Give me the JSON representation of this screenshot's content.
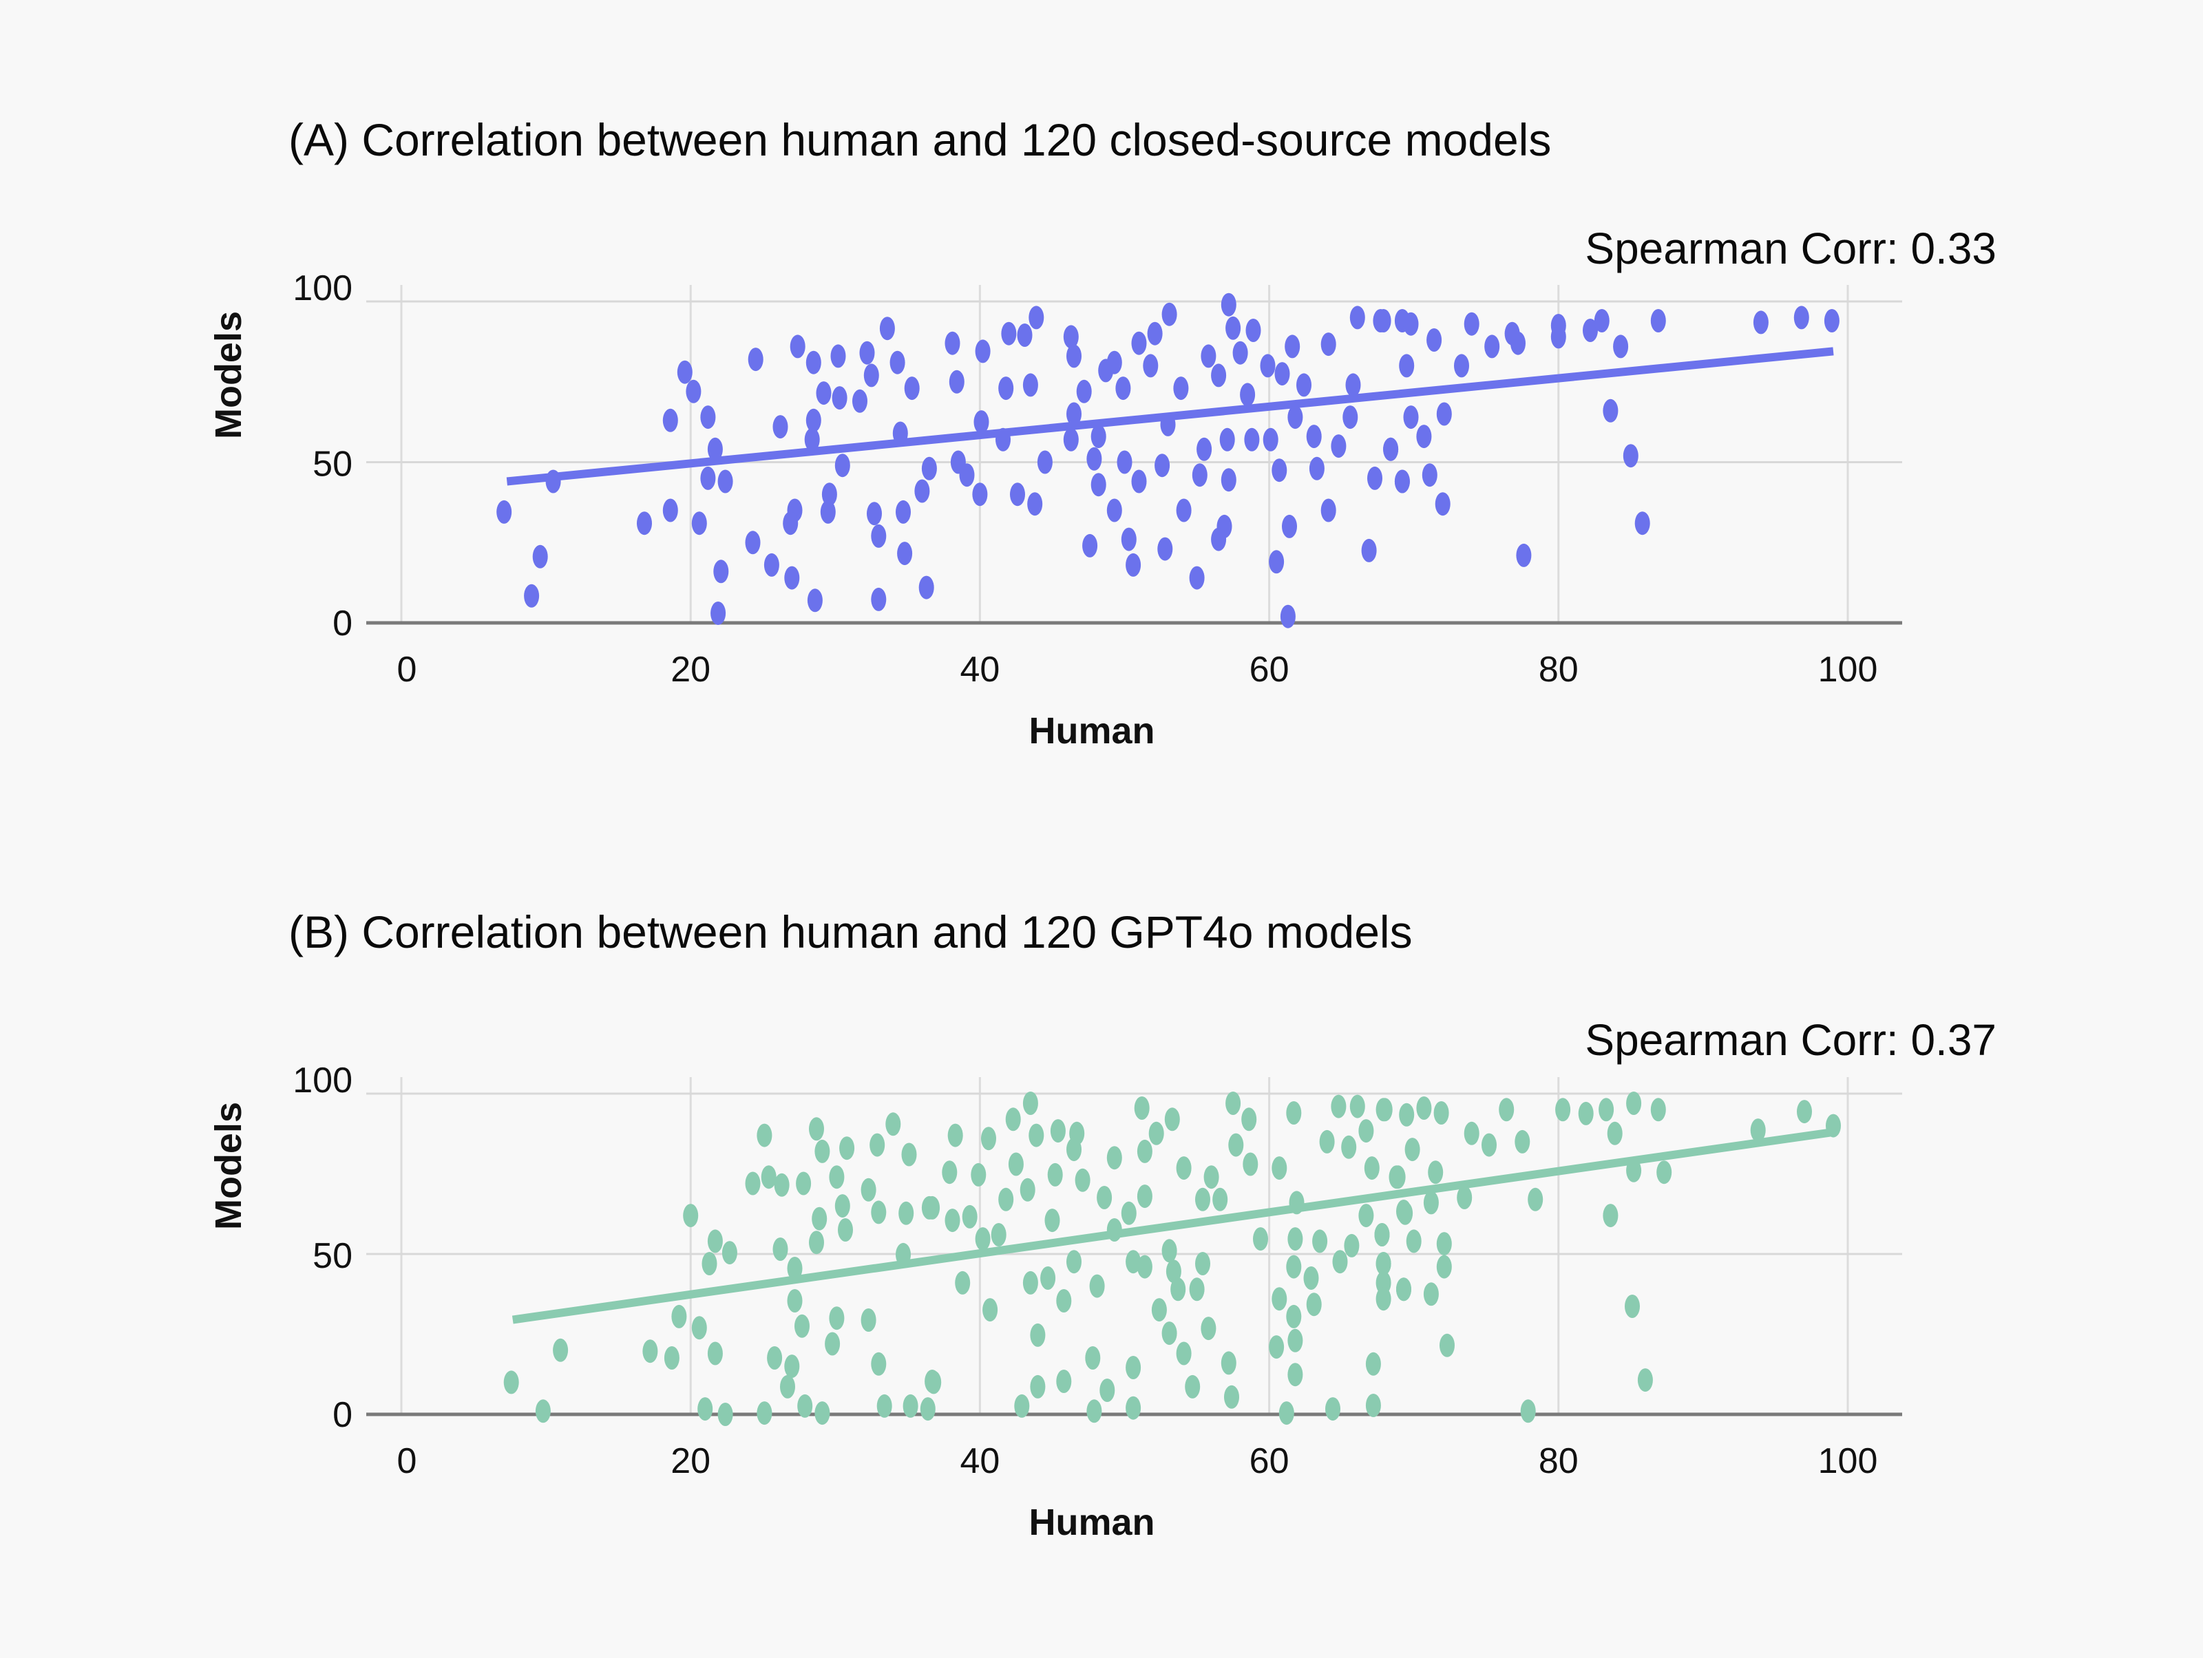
{
  "colors": {
    "background": "#f8f8f8",
    "series_a": "#6b72ec",
    "series_b": "#8acbb0",
    "grid": "#d8d8d8",
    "axis": "#7a7a7a"
  },
  "chart_data": [
    {
      "type": "scatter",
      "title": "(A) Correlation between human and 120 closed-source models",
      "annotation": "Spearman Corr: 0.33",
      "xlabel": "Human",
      "ylabel": "Models",
      "xlim": [
        0,
        100
      ],
      "ylim": [
        0,
        100
      ],
      "xticks": [
        "0",
        "20",
        "40",
        "60",
        "80",
        "100"
      ],
      "yticks": [
        "0",
        "50",
        "100"
      ],
      "grid": true,
      "color": "#6b72ec",
      "trendline": {
        "x": [
          7.3,
          99
        ],
        "y": [
          44,
          84.5
        ]
      },
      "points": [
        [
          7.1,
          34.5
        ],
        [
          9.6,
          20.6
        ],
        [
          9.0,
          8.4
        ],
        [
          10.5,
          44
        ],
        [
          18.6,
          63
        ],
        [
          19.6,
          78
        ],
        [
          20.2,
          72
        ],
        [
          21.2,
          64
        ],
        [
          21.7,
          54
        ],
        [
          21.2,
          45
        ],
        [
          22.4,
          44
        ],
        [
          16.8,
          31
        ],
        [
          18.6,
          35
        ],
        [
          20.6,
          31
        ],
        [
          22.1,
          16
        ],
        [
          21.9,
          3
        ],
        [
          24.5,
          82
        ],
        [
          27.4,
          86
        ],
        [
          33.6,
          91.6
        ],
        [
          28.5,
          81
        ],
        [
          30.2,
          83
        ],
        [
          32.2,
          84
        ],
        [
          32.5,
          77
        ],
        [
          34.3,
          81
        ],
        [
          35.3,
          73
        ],
        [
          29.2,
          71.5
        ],
        [
          30.3,
          70
        ],
        [
          31.7,
          69
        ],
        [
          26.2,
          61
        ],
        [
          28.5,
          63
        ],
        [
          28.4,
          57
        ],
        [
          34.5,
          59
        ],
        [
          30.5,
          49
        ],
        [
          36.5,
          48
        ],
        [
          36.0,
          41
        ],
        [
          29.6,
          40
        ],
        [
          29.5,
          34.5
        ],
        [
          27.2,
          35
        ],
        [
          32.7,
          34
        ],
        [
          34.7,
          34.5
        ],
        [
          33.0,
          27
        ],
        [
          26.9,
          31
        ],
        [
          24.3,
          25
        ],
        [
          25.6,
          18
        ],
        [
          27.0,
          14
        ],
        [
          34.8,
          21.6
        ],
        [
          36.3,
          11
        ],
        [
          28.6,
          7
        ],
        [
          33.0,
          7.3
        ],
        [
          38.1,
          87
        ],
        [
          38.4,
          75
        ],
        [
          40.2,
          84.5
        ],
        [
          43.9,
          95
        ],
        [
          42.0,
          90
        ],
        [
          43.1,
          89.5
        ],
        [
          46.3,
          89
        ],
        [
          43.5,
          74
        ],
        [
          41.8,
          73
        ],
        [
          40.1,
          62.5
        ],
        [
          41.6,
          57
        ],
        [
          44.5,
          50
        ],
        [
          38.5,
          50
        ],
        [
          39.1,
          46
        ],
        [
          40.0,
          40
        ],
        [
          42.6,
          40
        ],
        [
          43.8,
          37
        ],
        [
          46.5,
          83
        ],
        [
          48.7,
          78.5
        ],
        [
          49.3,
          81
        ],
        [
          47.2,
          72
        ],
        [
          46.5,
          65
        ],
        [
          48.2,
          58
        ],
        [
          46.3,
          57
        ],
        [
          47.9,
          51
        ],
        [
          50.0,
          50
        ],
        [
          48.2,
          43
        ],
        [
          49.3,
          35
        ],
        [
          47.6,
          24
        ],
        [
          50.3,
          26
        ],
        [
          50.6,
          18
        ],
        [
          52.8,
          23
        ],
        [
          55.0,
          14
        ],
        [
          51.0,
          44
        ],
        [
          52.6,
          49
        ],
        [
          54.1,
          35
        ],
        [
          56.9,
          30
        ],
        [
          56.5,
          26
        ],
        [
          55.2,
          46
        ],
        [
          55.5,
          54
        ],
        [
          57.1,
          57
        ],
        [
          57.2,
          44.5
        ],
        [
          53.1,
          96
        ],
        [
          52.1,
          90
        ],
        [
          51.0,
          87
        ],
        [
          51.8,
          80
        ],
        [
          53.0,
          61.7
        ],
        [
          49.9,
          73
        ],
        [
          53.9,
          73
        ],
        [
          57.2,
          99
        ],
        [
          57.5,
          91.7
        ],
        [
          55.8,
          83
        ],
        [
          58.0,
          84
        ],
        [
          56.5,
          77
        ],
        [
          58.9,
          91
        ],
        [
          61.6,
          86
        ],
        [
          64.1,
          86.7
        ],
        [
          59.9,
          80
        ],
        [
          60.9,
          77.5
        ],
        [
          62.4,
          74
        ],
        [
          58.5,
          71
        ],
        [
          61.8,
          64
        ],
        [
          63.1,
          58
        ],
        [
          58.8,
          57
        ],
        [
          60.1,
          57
        ],
        [
          60.7,
          47.5
        ],
        [
          63.3,
          48
        ],
        [
          64.8,
          55
        ],
        [
          64.1,
          35
        ],
        [
          61.4,
          30
        ],
        [
          60.5,
          19
        ],
        [
          61.3,
          2
        ],
        [
          66.9,
          22.5
        ],
        [
          66.1,
          95
        ],
        [
          67.7,
          94
        ],
        [
          65.8,
          74
        ],
        [
          65.6,
          64
        ],
        [
          67.3,
          45
        ],
        [
          68.4,
          54
        ],
        [
          69.2,
          44
        ],
        [
          69.2,
          94
        ],
        [
          67.9,
          94
        ],
        [
          69.8,
          93
        ],
        [
          71.4,
          88
        ],
        [
          74.0,
          93
        ],
        [
          75.4,
          86
        ],
        [
          76.8,
          90
        ],
        [
          77.2,
          87
        ],
        [
          73.3,
          80
        ],
        [
          69.5,
          80
        ],
        [
          72.1,
          65
        ],
        [
          69.8,
          64
        ],
        [
          70.7,
          58
        ],
        [
          68.4,
          54
        ],
        [
          69.2,
          44
        ],
        [
          71.1,
          46
        ],
        [
          72.0,
          37
        ],
        [
          77.6,
          21
        ],
        [
          80.0,
          92.5
        ],
        [
          80.0,
          89
        ],
        [
          82.2,
          91
        ],
        [
          83.0,
          94
        ],
        [
          84.3,
          86
        ],
        [
          86.9,
          94
        ],
        [
          83.6,
          66
        ],
        [
          85.0,
          52
        ],
        [
          85.8,
          31
        ],
        [
          94.0,
          93.5
        ],
        [
          96.8,
          95
        ],
        [
          98.9,
          94
        ]
      ]
    },
    {
      "type": "scatter",
      "title": "(B) Correlation between human and 120 GPT4o models",
      "annotation": "Spearman Corr: 0.37",
      "xlabel": "Human",
      "ylabel": "Models",
      "xlim": [
        0,
        100
      ],
      "ylim": [
        0,
        100
      ],
      "xticks": [
        "0",
        "20",
        "40",
        "60",
        "80",
        "100"
      ],
      "yticks": [
        "0",
        "50",
        "100"
      ],
      "grid": true,
      "color": "#8acbb0",
      "trendline": {
        "x": [
          7.7,
          99
        ],
        "y": [
          29.5,
          88
        ]
      },
      "points": [
        [
          7.6,
          10
        ],
        [
          9.8,
          1
        ],
        [
          11.0,
          20
        ],
        [
          17.2,
          19.7
        ],
        [
          18.7,
          17.6
        ],
        [
          19.2,
          30.5
        ],
        [
          20.6,
          27
        ],
        [
          21.7,
          19
        ],
        [
          20.0,
          62
        ],
        [
          21.7,
          54
        ],
        [
          22.7,
          50.4
        ],
        [
          21.3,
          47
        ],
        [
          26.2,
          51.5
        ],
        [
          27.2,
          45.5
        ],
        [
          27.2,
          35.4
        ],
        [
          27.7,
          27.5
        ],
        [
          30.1,
          30
        ],
        [
          32.3,
          29.4
        ],
        [
          29.8,
          22
        ],
        [
          25.8,
          17.6
        ],
        [
          27.0,
          15
        ],
        [
          26.7,
          8.6
        ],
        [
          33.0,
          15.7
        ],
        [
          36.8,
          10
        ],
        [
          21.0,
          1.7
        ],
        [
          22.4,
          0
        ],
        [
          25.1,
          0.4
        ],
        [
          27.9,
          2.6
        ],
        [
          29.1,
          0.4
        ],
        [
          33.4,
          2.6
        ],
        [
          35.2,
          2.6
        ],
        [
          36.4,
          1.7
        ],
        [
          25.1,
          87
        ],
        [
          28.7,
          89
        ],
        [
          34.0,
          90.5
        ],
        [
          29.1,
          82
        ],
        [
          30.8,
          83
        ],
        [
          32.9,
          84
        ],
        [
          35.1,
          81
        ],
        [
          25.4,
          74
        ],
        [
          24.3,
          72
        ],
        [
          26.3,
          71.5
        ],
        [
          27.8,
          72
        ],
        [
          30.1,
          74
        ],
        [
          32.3,
          70
        ],
        [
          30.5,
          65
        ],
        [
          28.9,
          61
        ],
        [
          30.7,
          57.5
        ],
        [
          28.7,
          53.6
        ],
        [
          33.0,
          63
        ],
        [
          34.9,
          62.7
        ],
        [
          36.5,
          64.4
        ],
        [
          34.7,
          49.8
        ],
        [
          38.3,
          87
        ],
        [
          37.9,
          75.5
        ],
        [
          39.9,
          74.7
        ],
        [
          40.6,
          86
        ],
        [
          42.3,
          92
        ],
        [
          43.5,
          97
        ],
        [
          43.9,
          87
        ],
        [
          45.4,
          88.4
        ],
        [
          46.7,
          87.6
        ],
        [
          42.5,
          78
        ],
        [
          45.2,
          74.7
        ],
        [
          46.5,
          82.6
        ],
        [
          49.3,
          80
        ],
        [
          51.4,
          82
        ],
        [
          47.1,
          73
        ],
        [
          43.3,
          70
        ],
        [
          41.8,
          67
        ],
        [
          45.0,
          60.5
        ],
        [
          38.1,
          60.5
        ],
        [
          39.3,
          61.6
        ],
        [
          36.7,
          64.4
        ],
        [
          40.2,
          54.7
        ],
        [
          41.3,
          56
        ],
        [
          51.2,
          95.5
        ],
        [
          53.3,
          92
        ],
        [
          52.2,
          87.6
        ],
        [
          48.6,
          67.6
        ],
        [
          51.4,
          68
        ],
        [
          50.3,
          62.7
        ],
        [
          49.3,
          57.5
        ],
        [
          38.8,
          41
        ],
        [
          43.5,
          41
        ],
        [
          44.7,
          42.5
        ],
        [
          46.5,
          47.6
        ],
        [
          48.1,
          40
        ],
        [
          45.8,
          35.4
        ],
        [
          50.6,
          47.6
        ],
        [
          51.4,
          46
        ],
        [
          53.1,
          51
        ],
        [
          53.4,
          44.6
        ],
        [
          55.4,
          47
        ],
        [
          53.7,
          39
        ],
        [
          55.0,
          39
        ],
        [
          40.7,
          32.6
        ],
        [
          44.0,
          24.7
        ],
        [
          52.4,
          32.6
        ],
        [
          53.1,
          25.3
        ],
        [
          54.1,
          19
        ],
        [
          55.8,
          26.8
        ],
        [
          47.8,
          17.6
        ],
        [
          50.6,
          14.6
        ],
        [
          57.2,
          16
        ],
        [
          57.4,
          5.4
        ],
        [
          54.7,
          8.6
        ],
        [
          48.8,
          7.5
        ],
        [
          45.8,
          10.3
        ],
        [
          44.0,
          8.6
        ],
        [
          42.9,
          2.6
        ],
        [
          47.9,
          1
        ],
        [
          50.6,
          2
        ],
        [
          36.7,
          10.3
        ],
        [
          57.5,
          97
        ],
        [
          58.6,
          92
        ],
        [
          57.7,
          84
        ],
        [
          54.1,
          76.8
        ],
        [
          56.0,
          74
        ],
        [
          58.7,
          78
        ],
        [
          55.4,
          67
        ],
        [
          56.6,
          67
        ],
        [
          61.7,
          94
        ],
        [
          64.8,
          96
        ],
        [
          66.1,
          96
        ],
        [
          67.9,
          95
        ],
        [
          66.7,
          88.4
        ],
        [
          60.7,
          76.8
        ],
        [
          64.0,
          85
        ],
        [
          65.5,
          83.3
        ],
        [
          67.1,
          76.8
        ],
        [
          68.9,
          74
        ],
        [
          61.9,
          66
        ],
        [
          66.7,
          62
        ],
        [
          69.4,
          62.7
        ],
        [
          59.4,
          54.7
        ],
        [
          61.8,
          54.7
        ],
        [
          63.5,
          54
        ],
        [
          65.7,
          52.6
        ],
        [
          67.8,
          56
        ],
        [
          64.9,
          47.6
        ],
        [
          61.7,
          46
        ],
        [
          62.9,
          42.5
        ],
        [
          67.9,
          47
        ],
        [
          67.9,
          41
        ],
        [
          67.9,
          36
        ],
        [
          69.3,
          39
        ],
        [
          60.7,
          36
        ],
        [
          63.1,
          34.3
        ],
        [
          61.7,
          30.5
        ],
        [
          60.5,
          21
        ],
        [
          61.8,
          23
        ],
        [
          61.8,
          12.4
        ],
        [
          67.2,
          15.7
        ],
        [
          61.2,
          0.4
        ],
        [
          64.4,
          1.7
        ],
        [
          67.2,
          2.8
        ],
        [
          68.0,
          95
        ],
        [
          69.5,
          93.4
        ],
        [
          70.7,
          95.5
        ],
        [
          71.9,
          94
        ],
        [
          69.9,
          82.6
        ],
        [
          74.0,
          87.6
        ],
        [
          75.2,
          84
        ],
        [
          76.4,
          95
        ],
        [
          77.5,
          85
        ],
        [
          68.8,
          74
        ],
        [
          71.5,
          75.5
        ],
        [
          69.3,
          63.3
        ],
        [
          71.2,
          66
        ],
        [
          73.5,
          67.6
        ],
        [
          78.4,
          67
        ],
        [
          67.8,
          56
        ],
        [
          70.0,
          54
        ],
        [
          72.1,
          53.2
        ],
        [
          72.1,
          46
        ],
        [
          67.9,
          47
        ],
        [
          69.3,
          39
        ],
        [
          71.2,
          37.5
        ],
        [
          72.3,
          21.5
        ],
        [
          77.9,
          1
        ],
        [
          80.3,
          95
        ],
        [
          81.9,
          93.8
        ],
        [
          83.3,
          95
        ],
        [
          85.2,
          97
        ],
        [
          86.9,
          95
        ],
        [
          83.9,
          87.6
        ],
        [
          87.3,
          75.5
        ],
        [
          85.2,
          76
        ],
        [
          83.6,
          62
        ],
        [
          85.1,
          33.7
        ],
        [
          86.0,
          10.7
        ],
        [
          93.8,
          88.6
        ],
        [
          97.0,
          94.4
        ],
        [
          99.0,
          90
        ]
      ]
    }
  ]
}
